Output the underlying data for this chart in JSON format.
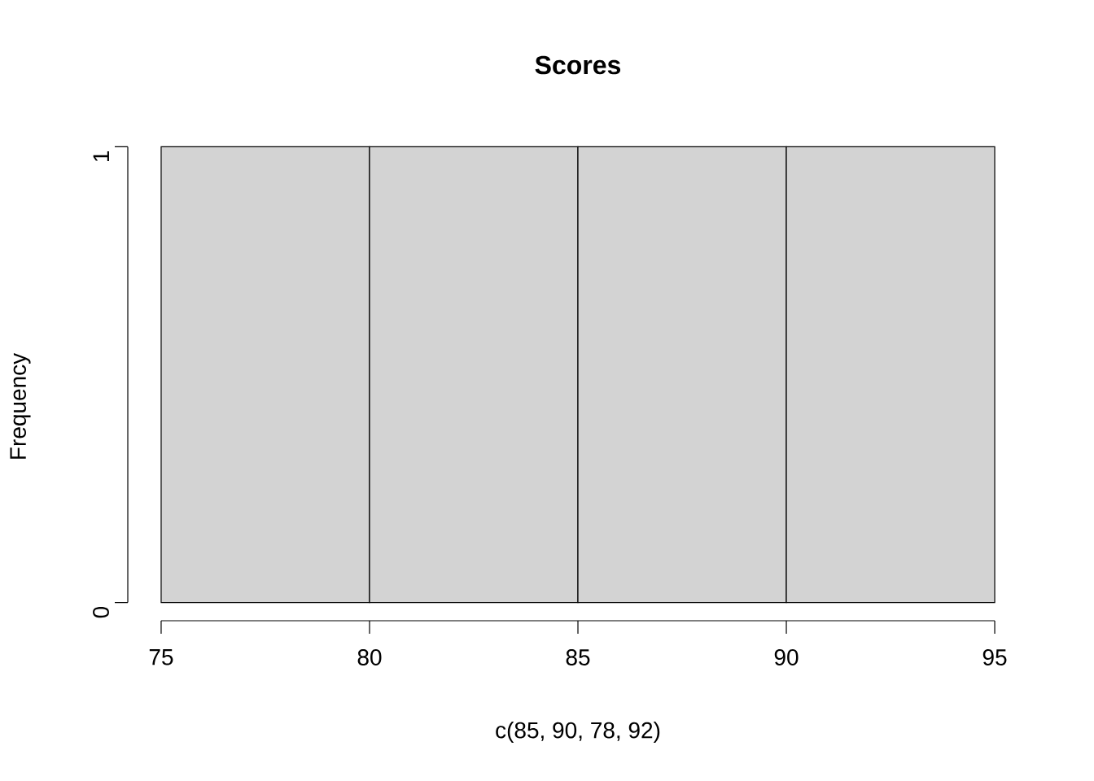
{
  "chart_data": {
    "type": "histogram",
    "title": "Scores",
    "xlabel": "c(85, 90, 78, 92)",
    "ylabel": "Frequency",
    "bins": [
      75,
      80,
      85,
      90,
      95
    ],
    "values": [
      1,
      1,
      1,
      1
    ],
    "color": "#d3d3d3",
    "xlim": [
      75,
      95
    ],
    "ylim": [
      0,
      1
    ],
    "xticks": [
      75,
      80,
      85,
      90,
      95
    ],
    "yticks": [
      0,
      1
    ]
  }
}
